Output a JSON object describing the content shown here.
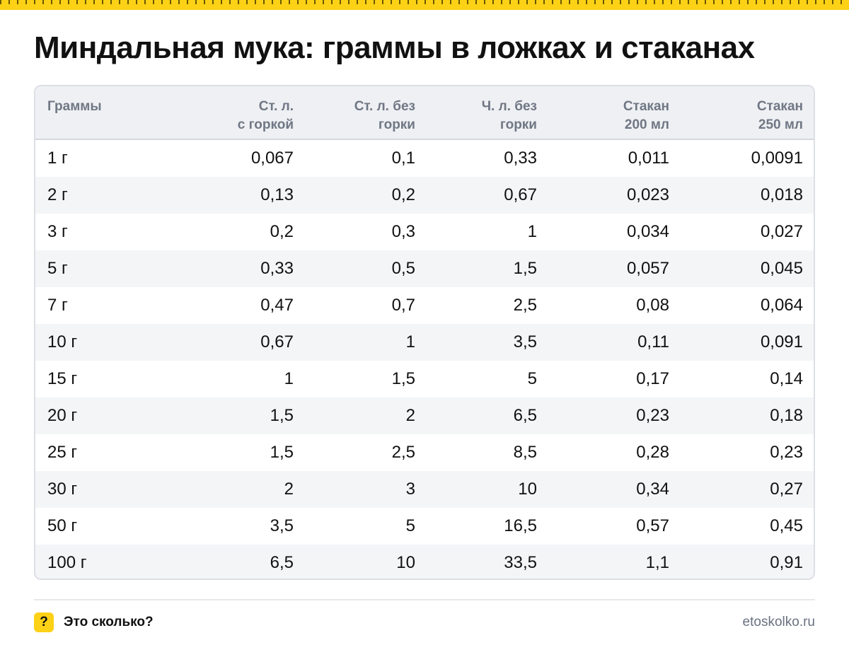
{
  "title": "Миндальная мука: граммы в ложках и стаканах",
  "table": {
    "headers": [
      {
        "line1": "Граммы",
        "line2": ""
      },
      {
        "line1": "Ст. л.",
        "line2": "с горкой"
      },
      {
        "line1": "Ст. л. без",
        "line2": "горки"
      },
      {
        "line1": "Ч. л. без",
        "line2": "горки"
      },
      {
        "line1": "Стакан",
        "line2": "200 мл"
      },
      {
        "line1": "Стакан",
        "line2": "250 мл"
      }
    ],
    "rows": [
      [
        "1 г",
        "0,067",
        "0,1",
        "0,33",
        "0,011",
        "0,0091"
      ],
      [
        "2 г",
        "0,13",
        "0,2",
        "0,67",
        "0,023",
        "0,018"
      ],
      [
        "3 г",
        "0,2",
        "0,3",
        "1",
        "0,034",
        "0,027"
      ],
      [
        "5 г",
        "0,33",
        "0,5",
        "1,5",
        "0,057",
        "0,045"
      ],
      [
        "7 г",
        "0,47",
        "0,7",
        "2,5",
        "0,08",
        "0,064"
      ],
      [
        "10 г",
        "0,67",
        "1",
        "3,5",
        "0,11",
        "0,091"
      ],
      [
        "15 г",
        "1",
        "1,5",
        "5",
        "0,17",
        "0,14"
      ],
      [
        "20 г",
        "1,5",
        "2",
        "6,5",
        "0,23",
        "0,18"
      ],
      [
        "25 г",
        "1,5",
        "2,5",
        "8,5",
        "0,28",
        "0,23"
      ],
      [
        "30 г",
        "2",
        "3",
        "10",
        "0,34",
        "0,27"
      ],
      [
        "50 г",
        "3,5",
        "5",
        "16,5",
        "0,57",
        "0,45"
      ],
      [
        "100 г",
        "6,5",
        "10",
        "33,5",
        "1,1",
        "0,91"
      ]
    ]
  },
  "footer": {
    "logo_glyph": "?",
    "brand": "Это сколько?",
    "site": "etoskolko.ru"
  },
  "colors": {
    "accent_yellow": "#fcd116",
    "header_bg": "#eef0f3",
    "stripe_bg": "#f4f5f7",
    "header_text": "#707784"
  }
}
